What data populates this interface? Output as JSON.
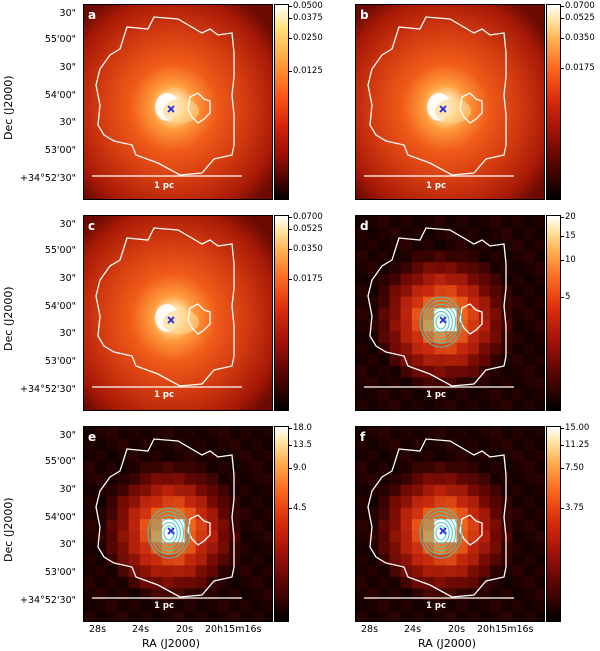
{
  "panels": [
    {
      "label": "a",
      "style": "smooth",
      "contours": false,
      "colorbar": [
        "0.0500",
        "0.0375",
        "0.0250",
        "0.0125"
      ]
    },
    {
      "label": "b",
      "style": "smooth",
      "contours": false,
      "colorbar": [
        "0.0700",
        "0.0525",
        "0.0350",
        "0.0175"
      ]
    },
    {
      "label": "c",
      "style": "smooth",
      "contours": false,
      "colorbar": [
        "0.0700",
        "0.0525",
        "0.0350",
        "0.0175"
      ]
    },
    {
      "label": "d",
      "style": "pixel",
      "contours": true,
      "colorbar": [
        "20",
        "15",
        "10",
        "5"
      ]
    },
    {
      "label": "e",
      "style": "pixel",
      "contours": true,
      "colorbar": [
        "18.0",
        "13.5",
        "9.0",
        "4.5"
      ]
    },
    {
      "label": "f",
      "style": "pixel",
      "contours": true,
      "colorbar": [
        "15.00",
        "11.25",
        "7.50",
        "3.75"
      ]
    }
  ],
  "axes": {
    "y_ticks": [
      "30\"",
      "55'00\"",
      "30\"",
      "54'00\"",
      "30\"",
      "53'00\"",
      "+34°52'30\""
    ],
    "x_ticks": [
      "28s",
      "24s",
      "20s",
      "20h15m16s"
    ],
    "ylabel": "Dec (J2000)",
    "xlabel": "RA (J2000)"
  },
  "scale_bar_label": "1 pc",
  "colors": {
    "source_marker": "#1a2ae0",
    "contour": "#40c8c0",
    "outline": "#ffffff"
  }
}
